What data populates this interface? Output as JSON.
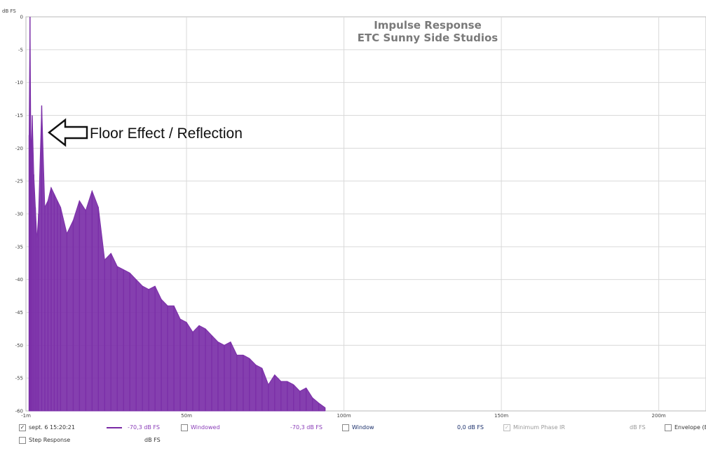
{
  "chart_data": {
    "type": "area",
    "title": "Impulse Response",
    "subtitle": "ETC Sunny Side Studios",
    "ylabel": "dB FS",
    "xlabel": "",
    "xlim": [
      -1,
      215
    ],
    "ylim": [
      -60,
      0
    ],
    "grid": true,
    "y_ticks": [
      {
        "v": 0,
        "label": "0"
      },
      {
        "v": -5,
        "label": "-5"
      },
      {
        "v": -10,
        "label": "-10"
      },
      {
        "v": -15,
        "label": "-15"
      },
      {
        "v": -20,
        "label": "-20"
      },
      {
        "v": -25,
        "label": "-25"
      },
      {
        "v": -30,
        "label": "-30"
      },
      {
        "v": -35,
        "label": "-35"
      },
      {
        "v": -40,
        "label": "-40"
      },
      {
        "v": -45,
        "label": "-45"
      },
      {
        "v": -50,
        "label": "-50"
      },
      {
        "v": -55,
        "label": "-55"
      },
      {
        "v": -60,
        "label": "-60"
      }
    ],
    "x_ticks": [
      {
        "v": -1,
        "label": "-1m"
      },
      {
        "v": 50,
        "label": "50m"
      },
      {
        "v": 100,
        "label": "100m"
      },
      {
        "v": 150,
        "label": "150m"
      },
      {
        "v": 200,
        "label": "200m"
      }
    ],
    "series": [
      {
        "color": "#7b2fa8",
        "x": [
          0.0,
          0.3,
          0.6,
          1.0,
          1.5,
          2.0,
          2.5,
          3,
          4,
          5,
          6,
          7,
          8,
          9,
          10,
          12,
          14,
          16,
          18,
          20,
          22,
          24,
          26,
          28,
          30,
          32,
          34,
          36,
          38,
          40,
          42,
          44,
          46,
          48,
          50,
          52,
          54,
          56,
          58,
          60,
          62,
          64,
          66,
          68,
          70,
          72,
          74,
          76,
          78,
          80,
          82,
          84,
          86,
          88,
          90,
          92,
          94
        ],
        "values": [
          -18,
          0,
          -22,
          -15,
          -24,
          -29,
          -34,
          -30,
          -13.5,
          -29,
          -28,
          -26,
          -27,
          -28,
          -29,
          -33,
          -31,
          -28,
          -29.5,
          -26.5,
          -29,
          -37,
          -36,
          -38,
          -38.5,
          -39,
          -40,
          -41,
          -41.5,
          -41,
          -43,
          -44,
          -44,
          -46,
          -46.5,
          -48,
          -47,
          -47.5,
          -48.5,
          -49.5,
          -50,
          -49.5,
          -51.5,
          -51.5,
          -52,
          -53,
          -53.5,
          -56,
          -54.5,
          -55.5,
          -55.5,
          -56,
          -57,
          -56.5,
          -58,
          -58.8,
          -59.5
        ]
      }
    ],
    "annotations": [
      {
        "text": "Floor Effect / Reflection",
        "x": 6,
        "y": -17.5
      }
    ]
  },
  "legend": {
    "row1": {
      "trace_checked": "✓",
      "trace_label": "sept. 6 15:20:21",
      "trace_value": "-70,3 dB FS",
      "windowed_label": "Windowed",
      "windowed_value": "-70,3 dB FS",
      "window_label": "Window",
      "window_value": "0,0 dB FS",
      "min_phase_checked": "✓",
      "min_phase_label": "Minimum Phase IR",
      "min_phase_value": "dB FS",
      "envelope_label": "Envelope (E"
    },
    "row2": {
      "step_label": "Step Response",
      "step_value": "dB FS"
    }
  }
}
